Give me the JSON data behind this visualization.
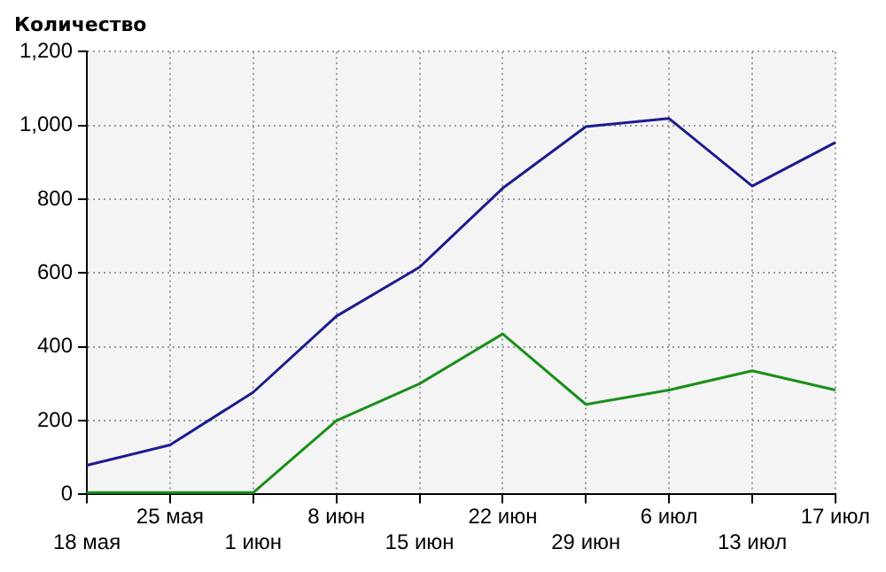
{
  "chart_data": {
    "type": "line",
    "title": "Количество",
    "categories": [
      "18 мая",
      "25 мая",
      "1 июн",
      "8 июн",
      "15 июн",
      "22 июн",
      "29 июн",
      "6 июл",
      "13 июл",
      "17 июл"
    ],
    "series": [
      {
        "color": "#1c1c8f",
        "values": [
          79,
          134,
          277,
          483,
          616,
          830,
          997,
          1019,
          836,
          954
        ]
      },
      {
        "color": "#1a8f1a",
        "values": [
          5,
          5,
          5,
          200,
          300,
          435,
          244,
          283,
          335,
          283
        ]
      }
    ],
    "ylim": [
      0,
      1200
    ],
    "yticks": [
      0,
      200,
      400,
      600,
      800,
      {
        "value": 1000,
        "label": "1,000"
      },
      {
        "value": 1200,
        "label": "1,200"
      }
    ],
    "grid": true,
    "legend": false,
    "marker": "none",
    "line_style": "solid"
  }
}
